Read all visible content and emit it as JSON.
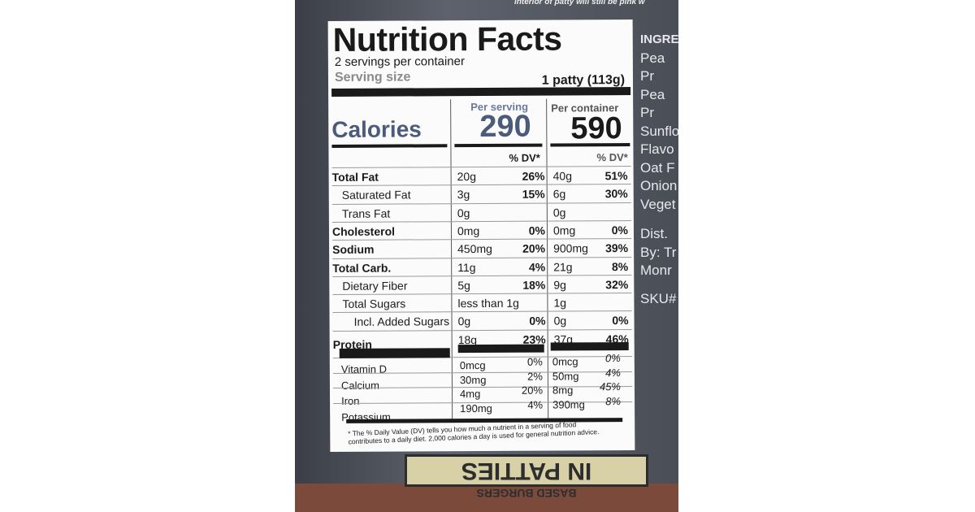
{
  "package_top_text": "interior of patty will still be pink w",
  "label": {
    "title": "Nutrition Facts",
    "servings": "2 servings per container",
    "serving_size_label": "Serving size",
    "serving_size": "1 patty (113g)",
    "col_serving": "Per serving",
    "col_container": "Per container",
    "calories_label": "Calories",
    "calories_serving": "290",
    "calories_container": "590",
    "dv_header_serving": "% DV*",
    "dv_header_container": "% DV*",
    "rows": [
      {
        "name": "Total Fat",
        "s_amt": "20g",
        "s_dv": "26%",
        "c_amt": "40g",
        "c_dv": "51%"
      },
      {
        "name": "Saturated Fat",
        "s_amt": "3g",
        "s_dv": "15%",
        "c_amt": "6g",
        "c_dv": "30%"
      },
      {
        "name": "Trans Fat",
        "s_amt": "0g",
        "c_amt": "0g"
      },
      {
        "name": "Cholesterol",
        "s_amt": "0mg",
        "s_dv": "0%",
        "c_amt": "0mg",
        "c_dv": "0%"
      },
      {
        "name": "Sodium",
        "s_amt": "450mg",
        "s_dv": "20%",
        "c_amt": "900mg",
        "c_dv": "39%"
      },
      {
        "name": "Total Carb.",
        "s_amt": "11g",
        "s_dv": "4%",
        "c_amt": "21g",
        "c_dv": "8%"
      },
      {
        "name": "Dietary Fiber",
        "s_amt": "5g",
        "s_dv": "18%",
        "c_amt": "9g",
        "c_dv": "32%"
      },
      {
        "name": "Total Sugars",
        "s_amt": "less than 1g",
        "c_amt": "1g"
      },
      {
        "name": "Incl. Added Sugars",
        "s_amt": "0g",
        "s_dv": "0%",
        "c_amt": "0g",
        "c_dv": "0%"
      },
      {
        "name": "Protein",
        "s_amt": "18g",
        "s_dv": "23%",
        "c_amt": "37g",
        "c_dv": "46%"
      }
    ],
    "vitamins": [
      {
        "name": "Vitamin D",
        "s_amt": "0mcg",
        "s_dv": "0%",
        "c_amt": "0mcg",
        "c_dv": "0%"
      },
      {
        "name": "Calcium",
        "s_amt": "30mg",
        "s_dv": "2%",
        "c_amt": "50mg",
        "c_dv": "4%"
      },
      {
        "name": "Iron",
        "s_amt": "4mg",
        "s_dv": "20%",
        "c_amt": "8mg",
        "c_dv": "45%"
      },
      {
        "name": "Potassium",
        "s_amt": "190mg",
        "s_dv": "4%",
        "c_amt": "390mg",
        "c_dv": "8%"
      }
    ],
    "footnote": "* The % Daily Value (DV) tells you how much a nutrient in a serving of food contributes to a daily diet. 2,000 calories a day is used for general nutrition advice."
  },
  "side_text": [
    "INGRE",
    "Pea Pr",
    "Pea Pr",
    "Sunflo",
    "Flavo",
    "Oat F",
    "Onion",
    "Veget",
    "Dist.",
    "By: Tr",
    "Monr",
    "SKU#"
  ],
  "bottom_text": [
    "BASED BURGERS",
    "IN PATTIES"
  ]
}
